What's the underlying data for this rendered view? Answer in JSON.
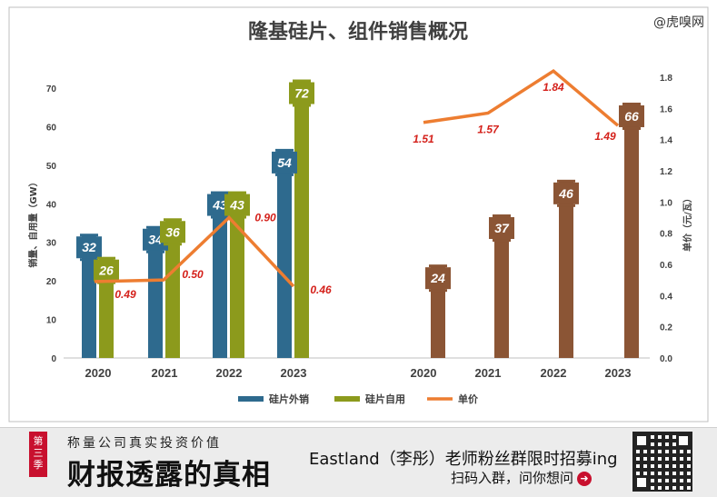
{
  "watermark": "@虎嗅网",
  "chart_data": {
    "title": "隆基硅片、组件销售概况",
    "left_panel": {
      "type": "bar+line",
      "categories": [
        "2020",
        "2021",
        "2022",
        "2023"
      ],
      "series": [
        {
          "name": "硅片外销",
          "color": "#2e6a8e",
          "values": [
            32,
            34,
            43,
            54
          ]
        },
        {
          "name": "硅片自用",
          "color": "#8c9a1c",
          "values": [
            26,
            36,
            43,
            72
          ]
        }
      ],
      "price_series": {
        "name": "单价",
        "color": "#ed7d31",
        "values": [
          0.49,
          0.5,
          0.9,
          0.46
        ],
        "labels": [
          "0.49",
          "0.50",
          "0.90",
          "0.46"
        ]
      },
      "ylabel": "销量、自用量（GW）",
      "ylim": [
        0,
        70
      ],
      "yticks": [
        "0",
        "10",
        "20",
        "30",
        "40",
        "50",
        "60",
        "70"
      ]
    },
    "right_panel": {
      "type": "bar+line",
      "categories": [
        "2020",
        "2021",
        "2022",
        "2023"
      ],
      "bar_color": "#8b5535",
      "values": [
        24,
        37,
        46,
        66
      ],
      "price_series": {
        "name": "单价",
        "color": "#ed7d31",
        "values": [
          1.51,
          1.57,
          1.84,
          1.49
        ],
        "labels": [
          "1.51",
          "1.57",
          "1.84",
          "1.49"
        ]
      },
      "ylabel": "单价（元/瓦）",
      "ylim": [
        0,
        1.8
      ],
      "yticks": [
        "0.0",
        "0.2",
        "0.4",
        "0.6",
        "0.8",
        "1.0",
        "1.2",
        "1.4",
        "1.6",
        "1.8"
      ]
    },
    "legend": {
      "placement": "bottom-center",
      "items": [
        {
          "label": "硅片外销",
          "color": "#2e6a8e"
        },
        {
          "label": "硅片自用",
          "color": "#8c9a1c"
        },
        {
          "label": "单价",
          "color": "#ed7d31"
        }
      ]
    },
    "grid": false
  },
  "banner": {
    "season": "第三季",
    "subtitle": "称量公司真实投资价值",
    "main": "财报透露的真相",
    "right_line1": "Eastland（李彤）老师粉丝群限时招募ing",
    "right_line2": "扫码入群，问你想问",
    "arrow_icon": "arrow-right-circle-icon"
  }
}
